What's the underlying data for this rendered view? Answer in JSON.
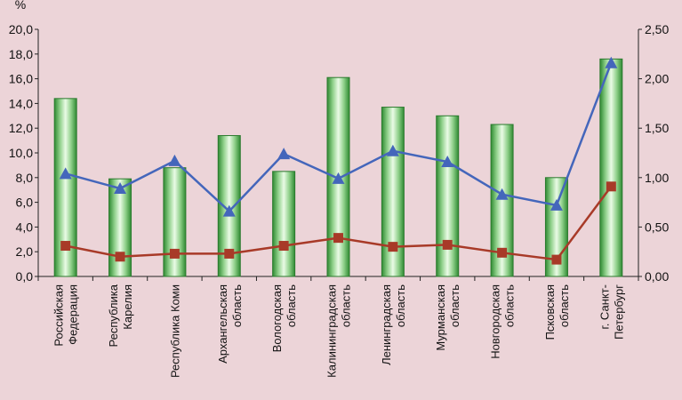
{
  "chart_data": {
    "type": "bar",
    "categories": [
      [
        "Российская",
        "Федерация"
      ],
      [
        "Республика",
        "Карелия"
      ],
      [
        "Республика Коми"
      ],
      [
        "Архангельская",
        "область"
      ],
      [
        "Вологодская",
        "область"
      ],
      [
        "Калининградская",
        "область"
      ],
      [
        "Ленинградская",
        "область"
      ],
      [
        "Мурманская",
        "область"
      ],
      [
        "Новгородская",
        "область"
      ],
      [
        "Псковская",
        "область"
      ],
      [
        "г. Санкт-",
        "Петербург"
      ]
    ],
    "series": [
      {
        "type": "bar",
        "axis": "left",
        "values": [
          14.4,
          7.9,
          8.8,
          11.4,
          8.5,
          16.1,
          13.7,
          13.0,
          12.3,
          8.0,
          17.6
        ]
      },
      {
        "type": "line",
        "axis": "right",
        "marker": "triangle",
        "values": [
          1.04,
          0.89,
          1.17,
          0.66,
          1.24,
          0.99,
          1.27,
          1.16,
          0.83,
          0.72,
          2.16
        ]
      },
      {
        "type": "line",
        "axis": "right",
        "marker": "square",
        "values": [
          0.31,
          0.2,
          0.23,
          0.23,
          0.31,
          0.39,
          0.3,
          0.32,
          0.24,
          0.17,
          0.91
        ]
      }
    ],
    "y_left": {
      "unit": "%",
      "ylim": [
        0,
        20
      ],
      "ticks": [
        "0,0",
        "2,0",
        "4,0",
        "6,0",
        "8,0",
        "10,0",
        "12,0",
        "14,0",
        "16,0",
        "18,0",
        "20,0"
      ]
    },
    "y_right": {
      "ylim": [
        0,
        2.5
      ],
      "ticks": [
        "0,00",
        "0,50",
        "1,00",
        "1,50",
        "2,00",
        "2,50"
      ]
    },
    "grid": false,
    "colors": {
      "background": "#ecd4d8",
      "bar": "#3e9b3e",
      "bar_light": "#e4f7df",
      "line_triangle": "#4466bb",
      "line_square": "#a83a28"
    }
  }
}
